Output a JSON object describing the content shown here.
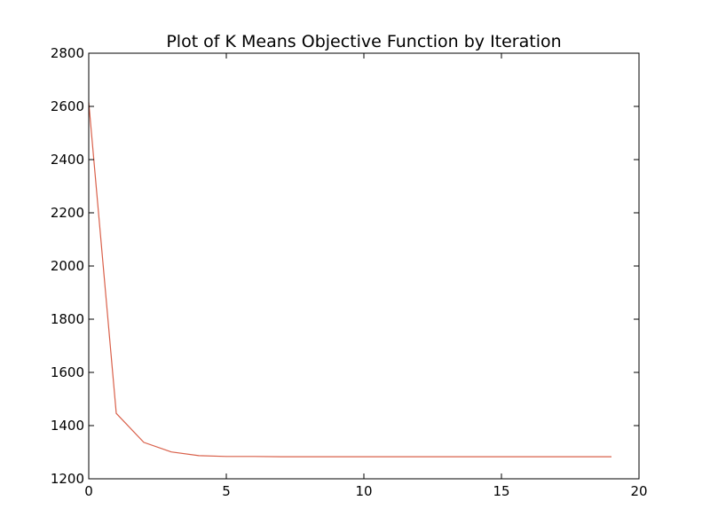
{
  "chart_data": {
    "type": "line",
    "title": "Plot of K Means Objective Function by Iteration",
    "xlabel": "",
    "ylabel": "",
    "xlim": [
      0,
      20
    ],
    "ylim": [
      1200,
      2800
    ],
    "xticks": [
      0,
      5,
      10,
      15,
      20
    ],
    "yticks": [
      1200,
      1400,
      1600,
      1800,
      2000,
      2200,
      2400,
      2600,
      2800
    ],
    "grid": false,
    "series": [
      {
        "color": "#d9604a",
        "x": [
          0,
          1,
          2,
          3,
          4,
          5,
          6,
          7,
          8,
          9,
          10,
          11,
          12,
          13,
          14,
          15,
          16,
          17,
          18,
          19
        ],
        "y": [
          2615,
          1446,
          1337,
          1301,
          1287,
          1284,
          1284,
          1283,
          1283,
          1283,
          1283,
          1283,
          1283,
          1283,
          1283,
          1283,
          1283,
          1283,
          1283,
          1283
        ]
      }
    ]
  }
}
